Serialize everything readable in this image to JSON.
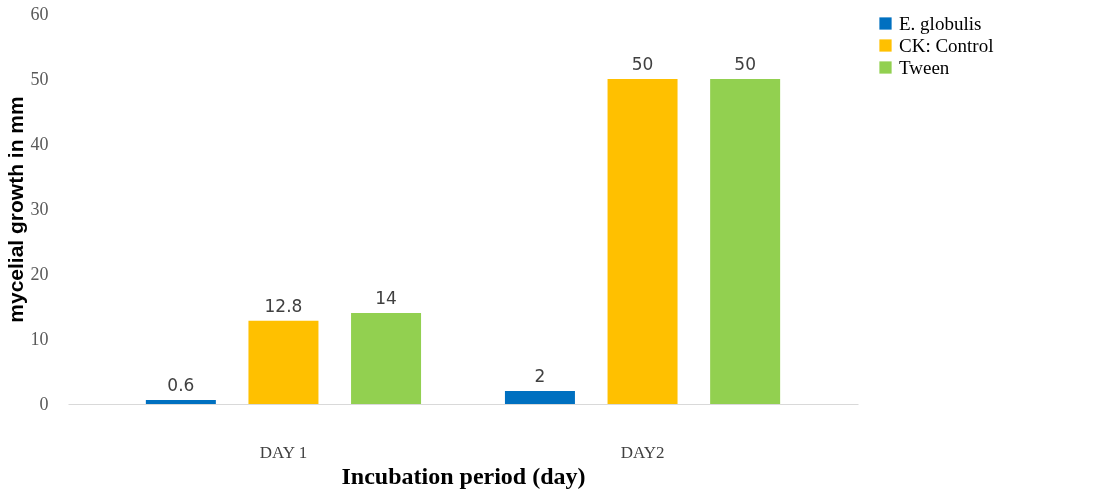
{
  "chart_data": {
    "type": "bar",
    "xlabel": "Incubation period (day)",
    "ylabel": "mycelial growth in mm",
    "categories": [
      "DAY 1",
      "DAY2"
    ],
    "series": [
      {
        "name": "E. globulis",
        "color": "#0070c0",
        "values": [
          0.6,
          2
        ]
      },
      {
        "name": "CK: Control",
        "color": "#ffc000",
        "values": [
          12.8,
          50
        ]
      },
      {
        "name": "Tween",
        "color": "#92d050",
        "values": [
          14,
          50
        ]
      }
    ],
    "ylim": [
      0,
      60
    ],
    "yticks": [
      0,
      10,
      20,
      30,
      40,
      50,
      60
    ],
    "grid": false,
    "legend": "right",
    "data_labels": true
  }
}
